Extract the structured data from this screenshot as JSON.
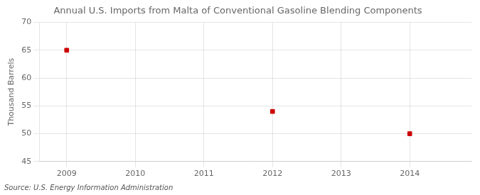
{
  "chart_data": {
    "type": "scatter",
    "title": "Annual U.S. Imports from Malta of Conventional Gasoline Blending Components",
    "ylabel": "Thousand Barrels",
    "annotations": [
      "Source: U.S. Energy Information Administration"
    ],
    "x": [
      2009,
      2012,
      2014
    ],
    "values": [
      65,
      54,
      50
    ],
    "color": "#cc0000",
    "marker": "square",
    "xlim": [
      2008.6,
      2014.9
    ],
    "xticks": [
      2009,
      2010,
      2011,
      2012,
      2013,
      2014
    ],
    "ylim": [
      45,
      70
    ],
    "yticks": [
      45,
      50,
      55,
      60,
      65,
      70
    ],
    "grid": true
  }
}
